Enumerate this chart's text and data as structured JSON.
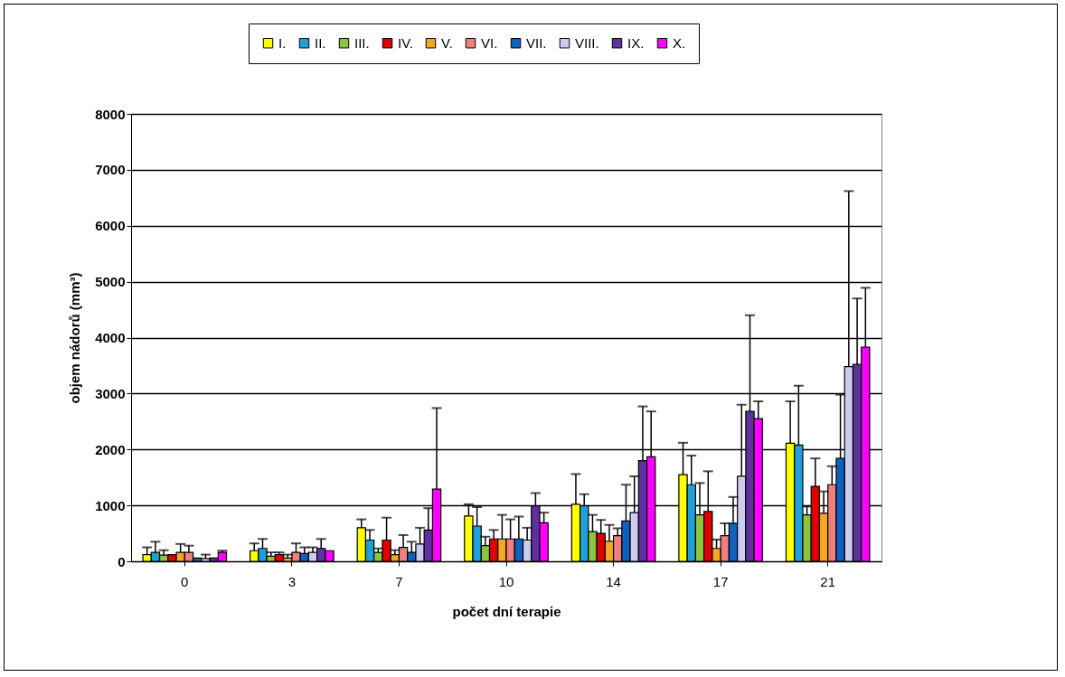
{
  "chart_data": {
    "type": "bar",
    "xlabel": "počet dní terapie",
    "ylabel": "objem nádorů (mm³)",
    "categories": [
      "0",
      "3",
      "7",
      "10",
      "14",
      "17",
      "21"
    ],
    "ylim": [
      0,
      8000
    ],
    "yticks": [
      0,
      1000,
      2000,
      3000,
      4000,
      5000,
      6000,
      7000,
      8000
    ],
    "grid": "y",
    "legend": "top",
    "series": [
      {
        "name": "I.",
        "color": "#ffff00",
        "values": [
          120,
          190,
          600,
          810,
          1020,
          1550,
          2110
        ],
        "errors": [
          [
            120,
            250
          ],
          [
            190,
            320
          ],
          [
            600,
            750
          ],
          [
            810,
            1020
          ],
          [
            1020,
            1560
          ],
          [
            1550,
            2120
          ],
          [
            2110,
            2860
          ]
        ]
      },
      {
        "name": "II.",
        "color": "#1fa0d8",
        "values": [
          160,
          230,
          380,
          630,
          990,
          1370,
          2080
        ],
        "errors": [
          [
            160,
            350
          ],
          [
            230,
            400
          ],
          [
            380,
            560
          ],
          [
            630,
            970
          ],
          [
            990,
            1200
          ],
          [
            1370,
            1890
          ],
          [
            2080,
            3140
          ]
        ]
      },
      {
        "name": "III.",
        "color": "#8cc63f",
        "values": [
          110,
          90,
          160,
          280,
          530,
          830,
          830
        ],
        "errors": [
          [
            110,
            200
          ],
          [
            90,
            160
          ],
          [
            160,
            230
          ],
          [
            280,
            440
          ],
          [
            530,
            830
          ],
          [
            830,
            1400
          ],
          [
            830,
            980
          ]
        ]
      },
      {
        "name": "IV.",
        "color": "#e00000",
        "values": [
          120,
          120,
          380,
          400,
          500,
          890,
          1340
        ],
        "errors": [
          null,
          [
            120,
            160
          ],
          [
            380,
            780
          ],
          [
            400,
            560
          ],
          [
            500,
            740
          ],
          [
            890,
            1610
          ],
          [
            1340,
            1840
          ]
        ]
      },
      {
        "name": "V.",
        "color": "#f5a623",
        "values": [
          160,
          60,
          120,
          400,
          360,
          230,
          860
        ],
        "errors": [
          [
            160,
            310
          ],
          [
            60,
            120
          ],
          [
            120,
            200
          ],
          [
            400,
            830
          ],
          [
            360,
            650
          ],
          [
            230,
            390
          ],
          [
            860,
            1250
          ]
        ]
      },
      {
        "name": "VI.",
        "color": "#f08080",
        "values": [
          160,
          160,
          250,
          400,
          460,
          460,
          1370
        ],
        "errors": [
          [
            160,
            280
          ],
          [
            160,
            320
          ],
          [
            250,
            470
          ],
          [
            400,
            750
          ],
          [
            460,
            590
          ],
          [
            460,
            680
          ],
          [
            1370,
            1700
          ]
        ]
      },
      {
        "name": "VII.",
        "color": "#1060c0",
        "values": [
          60,
          140,
          160,
          400,
          720,
          680,
          1840
        ],
        "errors": [
          null,
          [
            140,
            250
          ],
          [
            160,
            350
          ],
          [
            400,
            800
          ],
          [
            720,
            1370
          ],
          [
            680,
            1150
          ],
          [
            1840,
            2980
          ]
        ]
      },
      {
        "name": "VIII.",
        "color": "#ccccf0",
        "values": [
          50,
          160,
          310,
          380,
          870,
          1520,
          3480
        ],
        "errors": [
          [
            50,
            120
          ],
          [
            160,
            250
          ],
          [
            310,
            600
          ],
          [
            380,
            600
          ],
          [
            870,
            1520
          ],
          [
            1520,
            2800
          ],
          [
            3480,
            6620
          ]
        ]
      },
      {
        "name": "IX.",
        "color": "#6030a0",
        "values": [
          60,
          230,
          560,
          990,
          1800,
          2680,
          3520
        ],
        "errors": [
          null,
          [
            230,
            400
          ],
          [
            560,
            950
          ],
          [
            990,
            1220
          ],
          [
            1800,
            2770
          ],
          [
            2680,
            4400
          ],
          [
            3520,
            4700
          ]
        ]
      },
      {
        "name": "X.",
        "color": "#ff00ff",
        "values": [
          160,
          190,
          1290,
          690,
          1870,
          2550,
          3830
        ],
        "errors": [
          [
            160,
            190
          ],
          null,
          [
            1290,
            2740
          ],
          [
            690,
            870
          ],
          [
            1870,
            2680
          ],
          [
            2550,
            2860
          ],
          [
            3830,
            4890
          ]
        ]
      }
    ]
  }
}
